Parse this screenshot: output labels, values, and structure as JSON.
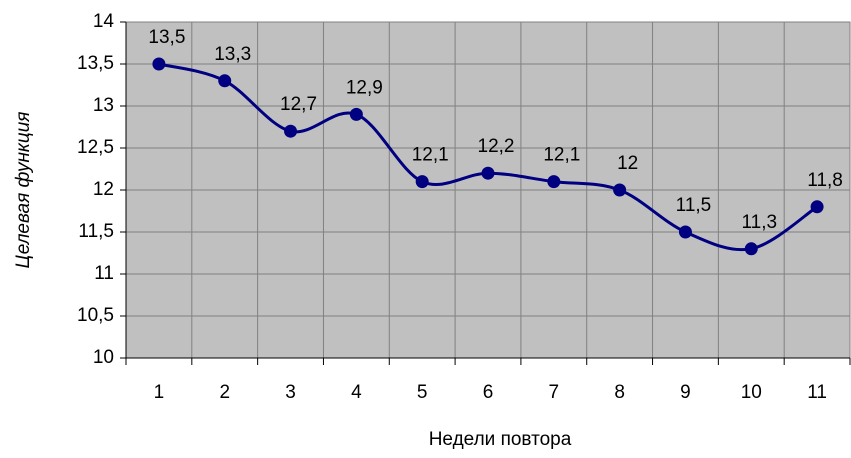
{
  "chart_data": {
    "type": "line",
    "x_label": "Недели повтора",
    "y_label": "Целевая функция",
    "categories": [
      "1",
      "2",
      "3",
      "4",
      "5",
      "6",
      "7",
      "8",
      "9",
      "10",
      "11"
    ],
    "series": [
      {
        "color": "#000080",
        "values": [
          13.5,
          13.3,
          12.7,
          12.9,
          12.1,
          12.2,
          12.1,
          12,
          11.5,
          11.3,
          11.8
        ],
        "value_labels": [
          "13,5",
          "13,3",
          "12,7",
          "12,9",
          "12,1",
          "12,2",
          "12,1",
          "12",
          "11,5",
          "11,3",
          "11,8"
        ]
      }
    ],
    "ylim": [
      10,
      14
    ],
    "yticks": [
      10,
      {
        "value": 10.5,
        "label": "10,5"
      },
      11,
      {
        "value": 11.5,
        "label": "11,5"
      },
      12,
      {
        "value": 12.5,
        "label": "12,5"
      },
      13,
      {
        "value": 13.5,
        "label": "13,5"
      },
      14
    ],
    "grid": true,
    "background": "#c0c0c0"
  }
}
